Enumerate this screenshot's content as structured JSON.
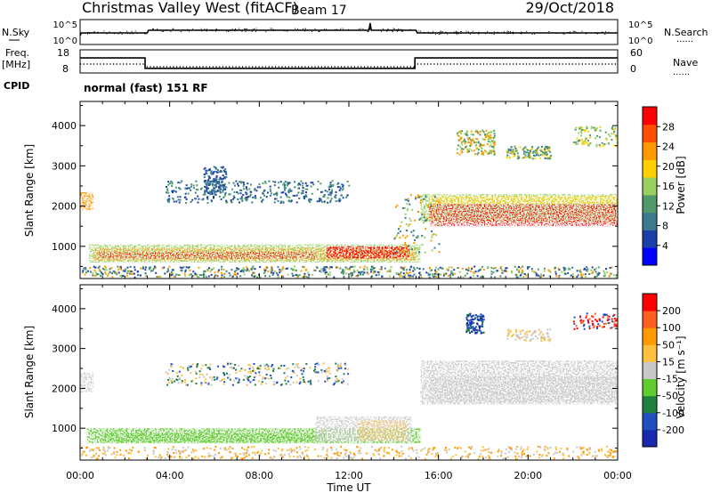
{
  "header": {
    "station": "Christmas Valley West (fitACF)",
    "beam": "Beam 17",
    "date": "29/Oct/2018"
  },
  "labels": {
    "nsky": "N.Sky",
    "nsearch": "N.Search",
    "freq": "Freq.",
    "freq_unit": "[MHz]",
    "nave": "Nave",
    "cpid": "CPID",
    "cpid_value": "normal (fast) 151 RF",
    "dots": "......"
  },
  "noise_ticks": {
    "top": "10^5",
    "bottom": "10^0"
  },
  "freq_ticks": {
    "top": "18",
    "bottom": "8"
  },
  "nave_ticks": {
    "top": "60",
    "bottom": "0"
  },
  "x_axis": {
    "label": "Time UT",
    "ticks": [
      "00:00",
      "04:00",
      "08:00",
      "12:00",
      "16:00",
      "20:00",
      "00:00"
    ],
    "range_hours": [
      0,
      24
    ]
  },
  "colors": {
    "power": [
      "#0000ff",
      "#1a3fa8",
      "#3a7a90",
      "#4f9a6a",
      "#9ad060",
      "#ffd000",
      "#ff9a00",
      "#ff5000",
      "#ff0000"
    ],
    "velocity": [
      "#1a2ab0",
      "#2050c0",
      "#208040",
      "#60cc30",
      "#c8c8c8",
      "#ffc040",
      "#ff9a00",
      "#ff6020",
      "#ff0000"
    ]
  },
  "chart_data": [
    {
      "type": "line",
      "name": "noise",
      "x": [
        0,
        0.05,
        3.0,
        3.05,
        12.9,
        12.95,
        13.0,
        15.0,
        15.05,
        24
      ],
      "y_level": [
        0.3,
        0.45,
        0.45,
        0.6,
        0.6,
        1.0,
        0.6,
        0.6,
        0.45,
        0.45
      ]
    },
    {
      "type": "line",
      "name": "frequency",
      "ylim": [
        8,
        18
      ],
      "x": [
        0,
        2.9,
        2.9,
        14.95,
        14.95,
        24
      ],
      "y": [
        14.5,
        14.5,
        10.0,
        10.0,
        14.5,
        14.5
      ]
    },
    {
      "type": "heatmap",
      "name": "power",
      "xlabel": "",
      "ylabel": "Slant Range [km]",
      "ylim": [
        200,
        4600
      ],
      "y_ticks": [
        1000,
        2000,
        3000,
        4000
      ],
      "colorbar": {
        "label": "Power [dB]",
        "ticks": [
          "4",
          "8",
          "12",
          "16",
          "20",
          "24",
          "28"
        ]
      },
      "features": [
        {
          "x": [
            0.0,
            0.6
          ],
          "y": [
            2300,
            1950
          ],
          "level": 5
        },
        {
          "x": [
            0.4,
            15.2
          ],
          "y": [
            660,
            900
          ],
          "level": 6
        },
        {
          "x": [
            11.0,
            14.6
          ],
          "y": [
            740,
            960
          ],
          "level": 8
        },
        {
          "x": [
            15.2,
            24.0
          ],
          "y": [
            1500,
            2200
          ],
          "level": 7
        },
        {
          "x": [
            3.8,
            11.8
          ],
          "y": [
            2200,
            2600
          ],
          "level": 2
        },
        {
          "x": [
            16.8,
            24.0
          ],
          "y": [
            3300,
            3900
          ],
          "level": 4
        }
      ]
    },
    {
      "type": "heatmap",
      "name": "velocity",
      "xlabel": "",
      "ylabel": "Slant Range [km]",
      "ylim": [
        200,
        4600
      ],
      "y_ticks": [
        1000,
        2000,
        3000,
        4000
      ],
      "colorbar": {
        "label": "Velocity [m s⁻¹]",
        "ticks": [
          "-200",
          "-100",
          "-50",
          "-15",
          "15",
          "50",
          "100",
          "200"
        ]
      },
      "features": [
        {
          "x": [
            0.3,
            15.2
          ],
          "y": [
            650,
            1000
          ],
          "level": 3
        },
        {
          "x": [
            11.0,
            14.7
          ],
          "y": [
            700,
            1300
          ],
          "level": 5
        },
        {
          "x": [
            15.2,
            24.0
          ],
          "y": [
            1600,
            2700
          ],
          "level": 4
        },
        {
          "x": [
            17.2,
            18.0
          ],
          "y": [
            3400,
            3900
          ],
          "level": 0
        }
      ]
    }
  ]
}
